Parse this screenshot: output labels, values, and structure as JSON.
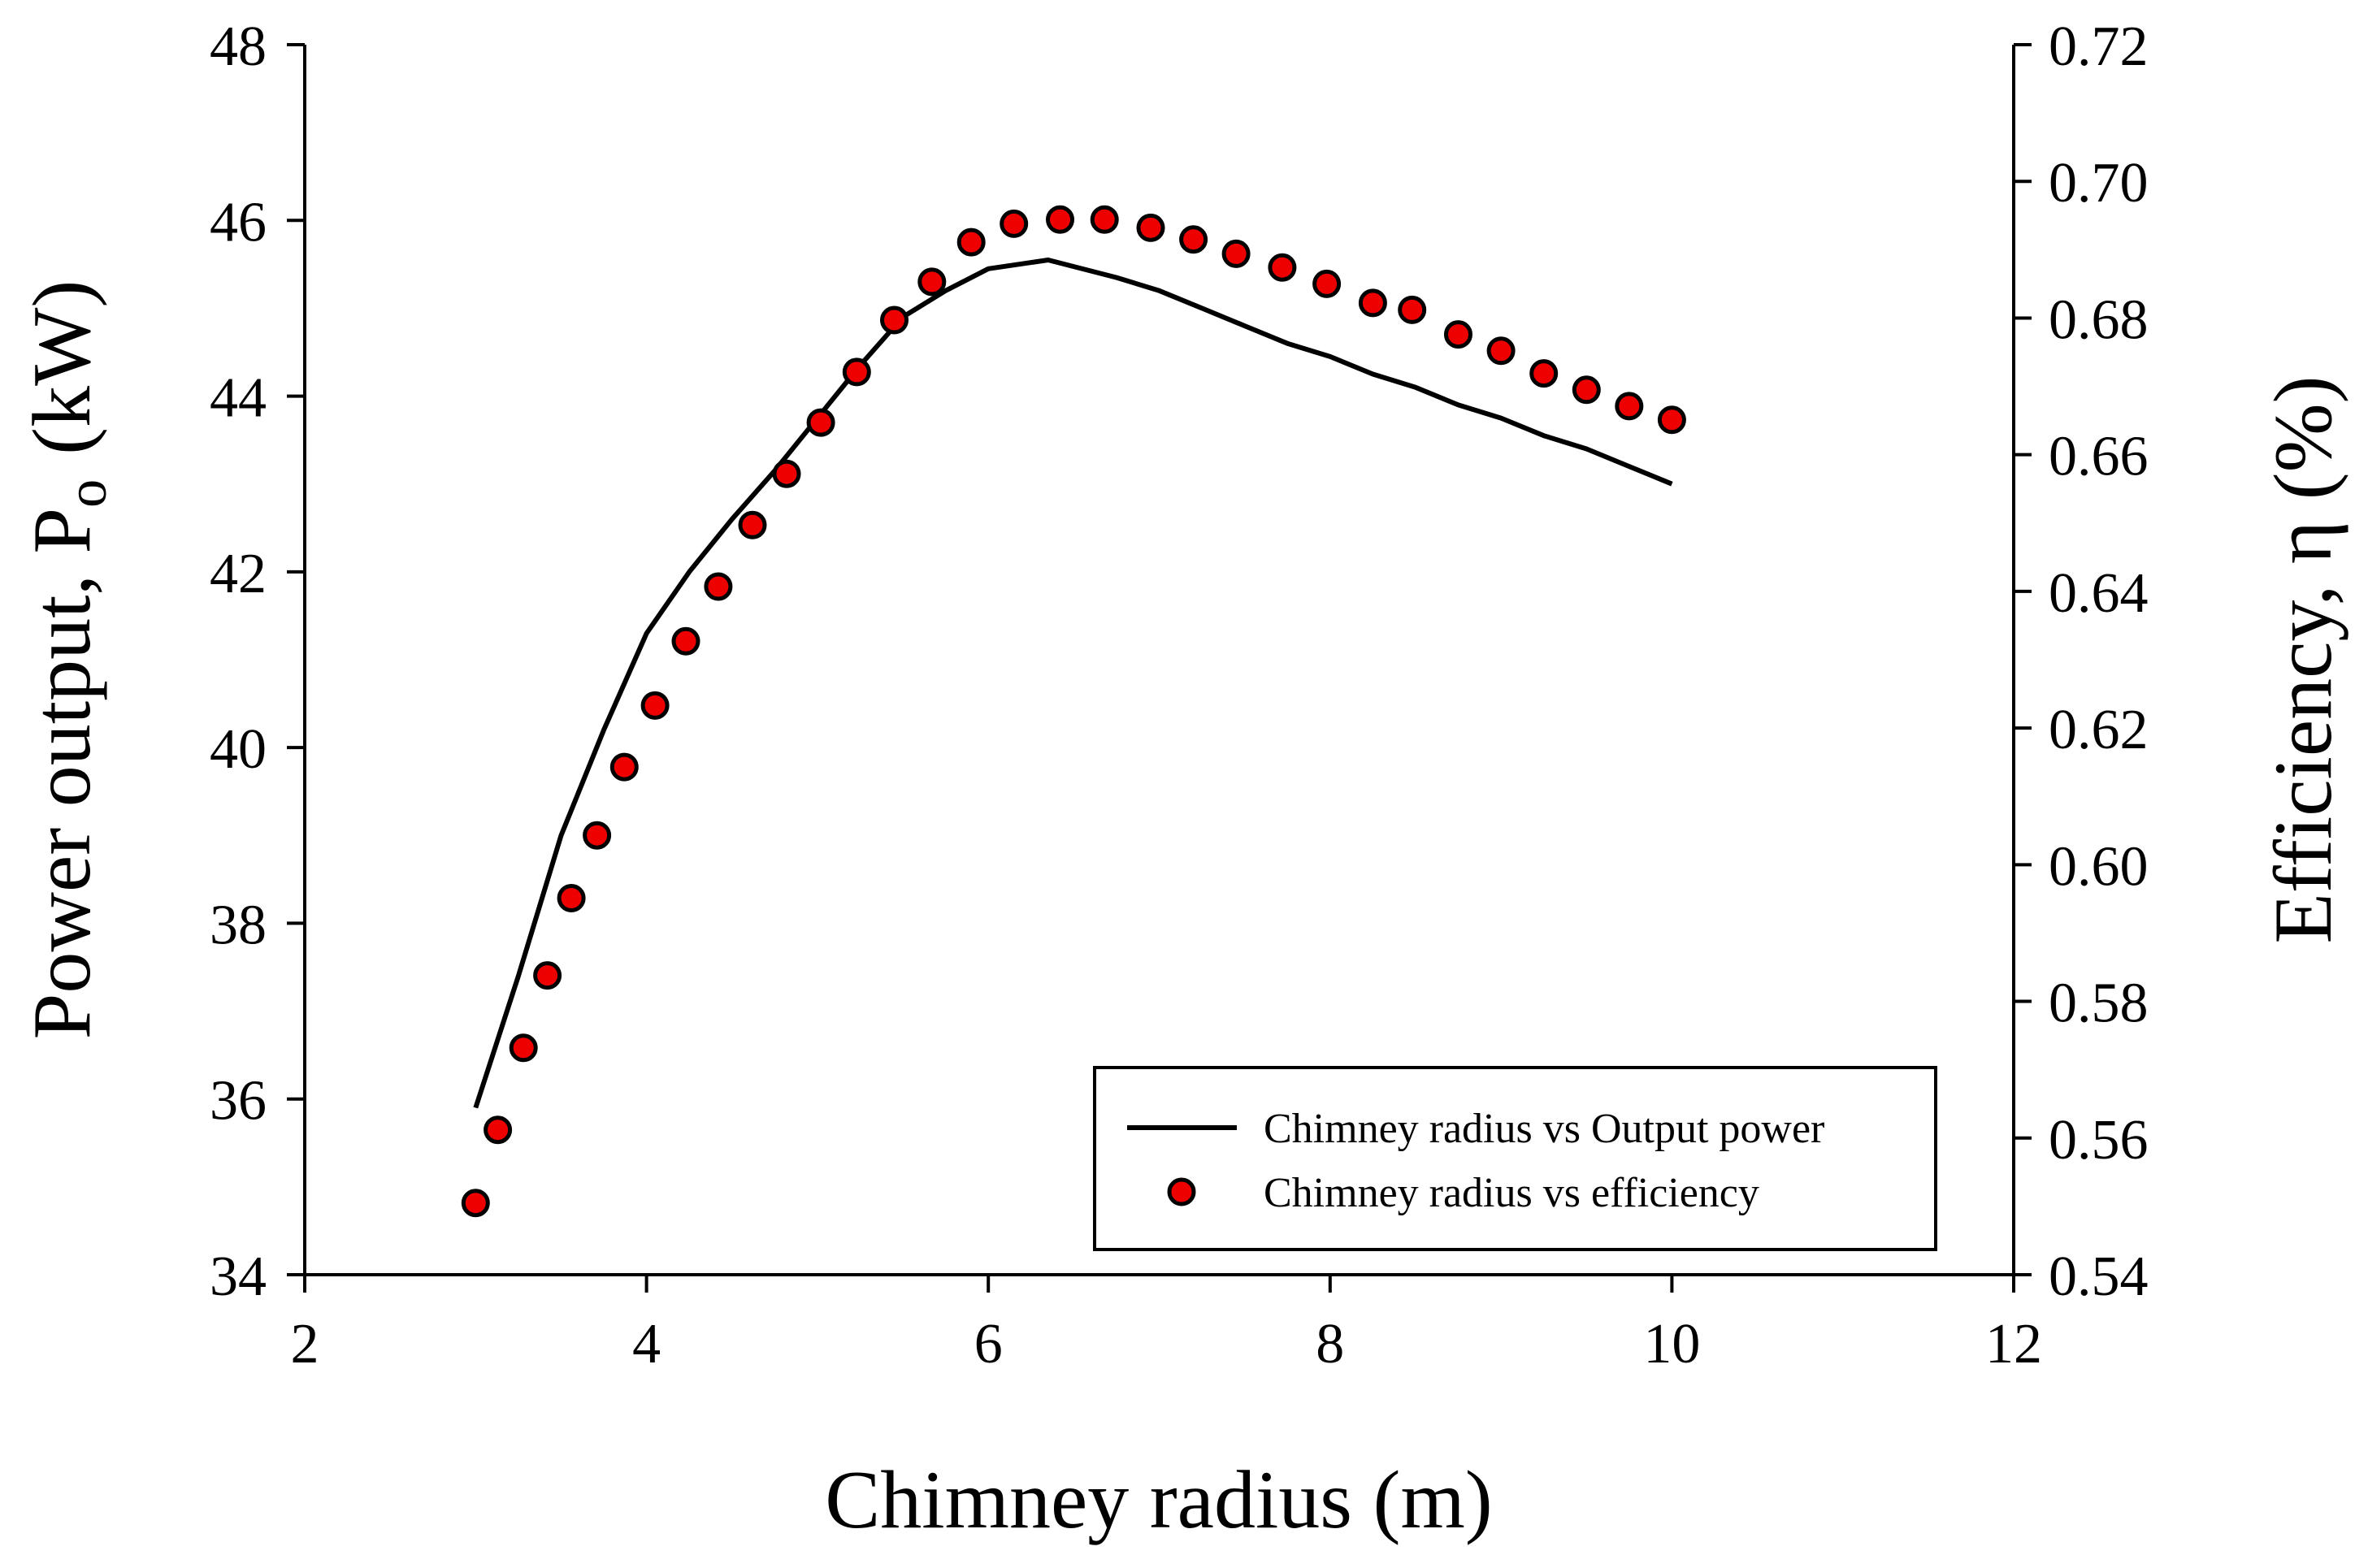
{
  "chart_data": {
    "type": "line",
    "title": "",
    "xlabel": "Chimney radius (m)",
    "ylabel_left": {
      "main": "Power output, P",
      "sub": "o",
      "unit": "(kW)"
    },
    "ylabel_right": "Efficiency, η (%)",
    "xlim": [
      2,
      12
    ],
    "ylim_left": [
      34,
      48
    ],
    "ylim_right": [
      0.54,
      0.72
    ],
    "x_ticks": [
      "2",
      "4",
      "6",
      "8",
      "10",
      "12"
    ],
    "y_left_ticks": [
      "34",
      "36",
      "38",
      "40",
      "42",
      "44",
      "46",
      "48"
    ],
    "y_right_ticks": [
      "0.54",
      "0.56",
      "0.58",
      "0.60",
      "0.62",
      "0.64",
      "0.66",
      "0.68",
      "0.70",
      "0.72"
    ],
    "grid": false,
    "legend_position": "bottom-right",
    "series": [
      {
        "name": "Chimney radius vs Output power",
        "style": "line",
        "axis": "left",
        "color": "#000000",
        "x": [
          3.0,
          3.25,
          3.5,
          3.75,
          4.0,
          4.25,
          4.5,
          4.75,
          5.0,
          5.25,
          5.5,
          5.75,
          6.0,
          6.35,
          6.75,
          7.0,
          7.25,
          7.5,
          7.75,
          8.0,
          8.25,
          8.5,
          8.75,
          9.0,
          9.25,
          9.5,
          9.75,
          10.0
        ],
        "y": [
          35.9,
          37.4,
          39.0,
          40.2,
          41.3,
          42.0,
          42.6,
          43.15,
          43.75,
          44.35,
          44.9,
          45.2,
          45.45,
          45.55,
          45.35,
          45.2,
          45.0,
          44.8,
          44.6,
          44.45,
          44.25,
          44.1,
          43.9,
          43.75,
          43.55,
          43.4,
          43.2,
          43.0
        ]
      },
      {
        "name": "Chimney radius vs efficiency",
        "style": "markers",
        "axis": "right",
        "color": "#ee0000",
        "x": [
          3.0,
          3.13,
          3.28,
          3.42,
          3.56,
          3.71,
          3.87,
          4.05,
          4.23,
          4.42,
          4.62,
          4.82,
          5.02,
          5.23,
          5.45,
          5.67,
          5.9,
          6.15,
          6.42,
          6.68,
          6.95,
          7.2,
          7.45,
          7.72,
          7.98,
          8.25,
          8.48,
          8.75,
          9.0,
          9.25,
          9.5,
          9.75,
          10.0
        ],
        "y": [
          0.5505,
          0.5612,
          0.5732,
          0.5838,
          0.5951,
          0.6043,
          0.6143,
          0.6233,
          0.6327,
          0.6407,
          0.6497,
          0.6572,
          0.6647,
          0.6721,
          0.6797,
          0.6853,
          0.6911,
          0.6938,
          0.6944,
          0.6944,
          0.6932,
          0.6915,
          0.6894,
          0.6874,
          0.685,
          0.6822,
          0.6812,
          0.6776,
          0.6752,
          0.6719,
          0.6695,
          0.6671,
          0.6651
        ]
      }
    ]
  }
}
